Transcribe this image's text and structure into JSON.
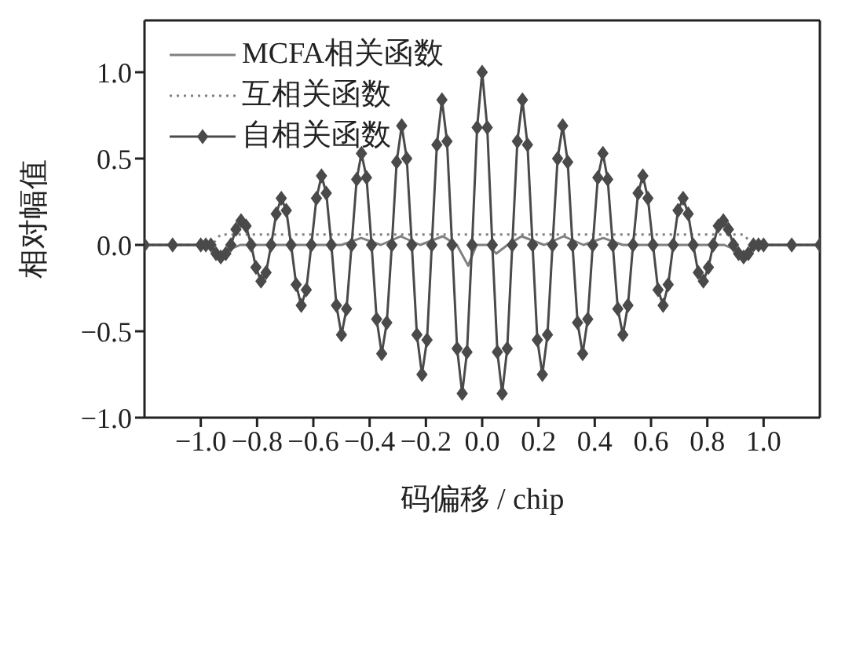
{
  "chart_data": {
    "type": "line",
    "xlabel": "码偏移 / chip",
    "ylabel": "相对幅值",
    "xlim": [
      -1.2,
      1.2
    ],
    "ylim": [
      -1.0,
      1.3
    ],
    "xticks": [
      {
        "value": -1.0,
        "label": "−1.0"
      },
      {
        "value": -0.8,
        "label": "−0.8"
      },
      {
        "value": -0.6,
        "label": "−0.6"
      },
      {
        "value": -0.4,
        "label": "−0.4"
      },
      {
        "value": -0.2,
        "label": "−0.2"
      },
      {
        "value": 0,
        "label": "0.0"
      },
      {
        "value": 0.2,
        "label": "0.2"
      },
      {
        "value": 0.4,
        "label": "0.4"
      },
      {
        "value": 0.6,
        "label": "0.6"
      },
      {
        "value": 0.8,
        "label": "0.8"
      },
      {
        "value": 1.0,
        "label": "1.0"
      }
    ],
    "yticks": [
      {
        "value": -1.0,
        "label": "−1.0"
      },
      {
        "value": -0.5,
        "label": "−0.5"
      },
      {
        "value": 0,
        "label": "0.0"
      },
      {
        "value": 0.5,
        "label": "0.5"
      },
      {
        "value": 1.0,
        "label": "1.0"
      }
    ],
    "grid": false,
    "legend": "top left",
    "series": [
      {
        "name": "MCFA相关函数",
        "color": "#808080",
        "line_style": "solid",
        "marker": "none",
        "x": [
          -1.2,
          -1.0,
          -0.93,
          -0.86,
          -0.5,
          -0.43,
          -0.36,
          -0.29,
          -0.22,
          -0.14,
          -0.09,
          -0.05,
          -0.02,
          0.02,
          0.05,
          0.09,
          0.14,
          0.22,
          0.29,
          0.36,
          0.43,
          0.5,
          0.86,
          0.93,
          1.0,
          1.2
        ],
        "values": [
          0,
          0,
          -0.05,
          0,
          0,
          0.04,
          0,
          0.05,
          0,
          0.05,
          0,
          -0.12,
          0,
          0,
          -0.05,
          0,
          0.05,
          0,
          0.05,
          0,
          0.04,
          0,
          0,
          -0.05,
          0,
          0
        ]
      },
      {
        "name": "互相关函数",
        "color": "#808080",
        "line_style": "dotted",
        "marker": "none",
        "x": [
          -1.2,
          -0.96,
          -0.93,
          -0.5,
          0,
          0.5,
          0.93,
          0.96,
          1.2
        ],
        "values": [
          0,
          0,
          0.06,
          0.06,
          0.06,
          0.06,
          0.06,
          0,
          0
        ]
      },
      {
        "name": "自相关函数",
        "color": "#4a4a4a",
        "line_style": "solid",
        "marker": "diamond",
        "x": [
          -1.2,
          -1.1,
          -1.0,
          -0.982,
          -0.964,
          -0.946,
          -0.929,
          -0.911,
          -0.893,
          -0.875,
          -0.857,
          -0.839,
          -0.821,
          -0.804,
          -0.786,
          -0.768,
          -0.75,
          -0.732,
          -0.714,
          -0.696,
          -0.679,
          -0.661,
          -0.643,
          -0.625,
          -0.607,
          -0.589,
          -0.571,
          -0.554,
          -0.536,
          -0.518,
          -0.5,
          -0.482,
          -0.464,
          -0.446,
          -0.429,
          -0.411,
          -0.393,
          -0.375,
          -0.357,
          -0.339,
          -0.321,
          -0.304,
          -0.286,
          -0.268,
          -0.25,
          -0.232,
          -0.214,
          -0.196,
          -0.179,
          -0.161,
          -0.143,
          -0.125,
          -0.107,
          -0.089,
          -0.071,
          -0.054,
          -0.036,
          -0.018,
          0,
          0.018,
          0.036,
          0.054,
          0.071,
          0.089,
          0.107,
          0.125,
          0.143,
          0.161,
          0.179,
          0.196,
          0.214,
          0.232,
          0.25,
          0.268,
          0.286,
          0.304,
          0.321,
          0.339,
          0.357,
          0.375,
          0.393,
          0.411,
          0.429,
          0.446,
          0.464,
          0.482,
          0.5,
          0.518,
          0.536,
          0.554,
          0.571,
          0.589,
          0.607,
          0.625,
          0.643,
          0.661,
          0.679,
          0.696,
          0.714,
          0.732,
          0.75,
          0.768,
          0.786,
          0.804,
          0.821,
          0.839,
          0.857,
          0.875,
          0.893,
          0.911,
          0.929,
          0.946,
          0.964,
          0.982,
          1.0,
          1.1,
          1.2
        ],
        "values": [
          0,
          0,
          0,
          0,
          0,
          -0.05,
          -0.07,
          -0.05,
          0,
          0.09,
          0.14,
          0.11,
          0,
          -0.13,
          -0.21,
          -0.16,
          0,
          0.18,
          0.27,
          0.2,
          0,
          -0.23,
          -0.35,
          -0.26,
          0,
          0.27,
          0.4,
          0.3,
          0,
          -0.35,
          -0.52,
          -0.37,
          0,
          0.38,
          0.53,
          0.39,
          0,
          -0.43,
          -0.63,
          -0.45,
          0,
          0.48,
          0.69,
          0.5,
          0,
          -0.52,
          -0.75,
          -0.55,
          0,
          0.58,
          0.84,
          0.6,
          0,
          -0.6,
          -0.86,
          -0.62,
          0,
          0.68,
          1.0,
          0.68,
          0,
          -0.62,
          -0.86,
          -0.6,
          0,
          0.6,
          0.84,
          0.58,
          0,
          -0.55,
          -0.75,
          -0.52,
          0,
          0.5,
          0.69,
          0.48,
          0,
          -0.45,
          -0.63,
          -0.43,
          0,
          0.39,
          0.53,
          0.38,
          0,
          -0.37,
          -0.52,
          -0.35,
          0,
          0.3,
          0.4,
          0.27,
          0,
          -0.26,
          -0.35,
          -0.23,
          0,
          0.2,
          0.27,
          0.18,
          0,
          -0.16,
          -0.21,
          -0.13,
          0,
          0.11,
          0.14,
          0.09,
          0,
          -0.05,
          -0.07,
          -0.05,
          0,
          0,
          0,
          0,
          0
        ]
      }
    ]
  }
}
